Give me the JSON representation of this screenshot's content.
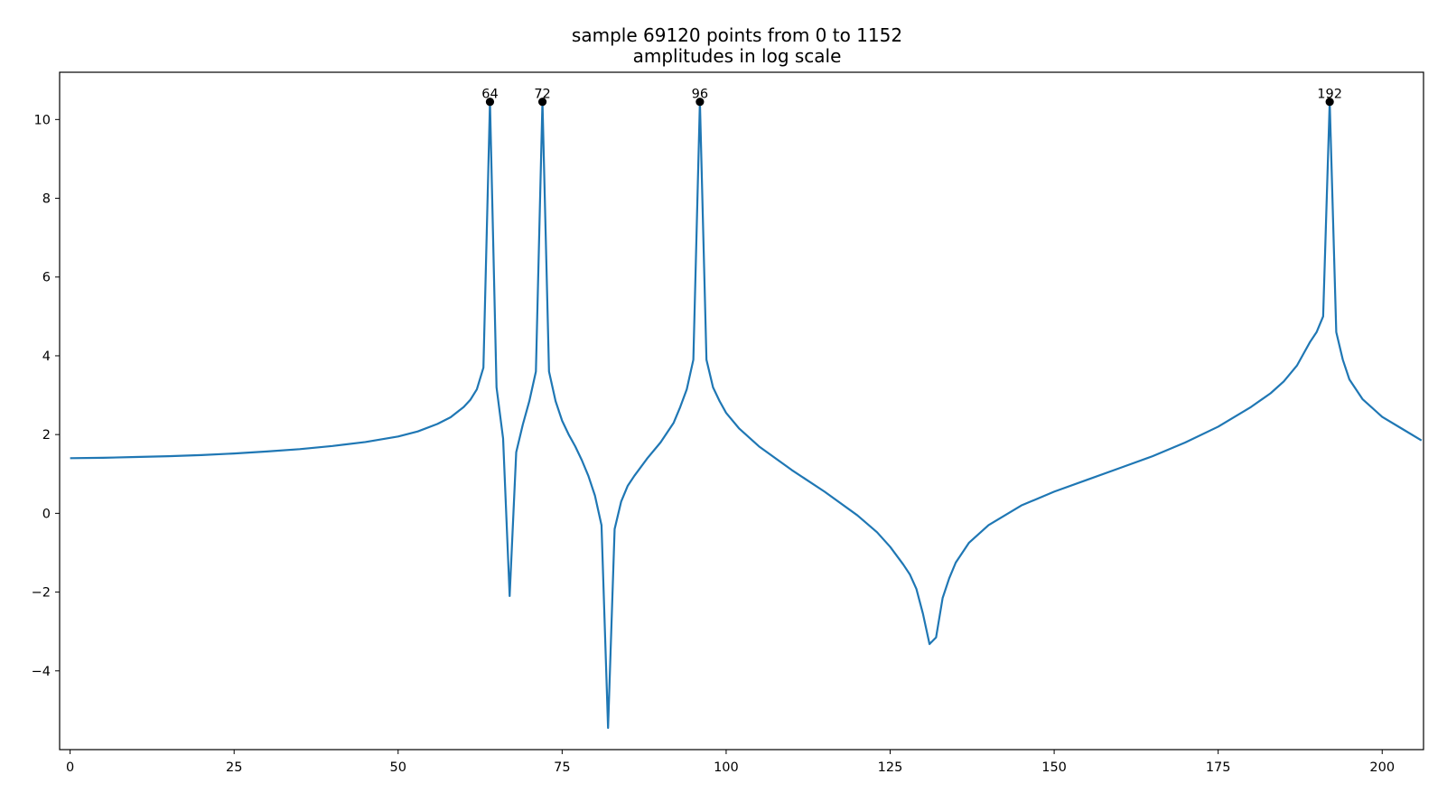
{
  "chart_data": {
    "type": "line",
    "title_lines": [
      "sample 69120 points from 0 to 1152",
      "amplitudes in log scale"
    ],
    "xlabel": "",
    "ylabel": "",
    "xlim": [
      -1.6,
      206.3
    ],
    "ylim": [
      -6.0,
      11.2
    ],
    "xticks": [
      0,
      25,
      50,
      75,
      100,
      125,
      150,
      175,
      200
    ],
    "yticks": [
      -4,
      -2,
      0,
      2,
      4,
      6,
      8,
      10
    ],
    "xtick_labels": [
      "0",
      "25",
      "50",
      "75",
      "100",
      "125",
      "150",
      "175",
      "200"
    ],
    "ytick_labels": [
      "−4",
      "−2",
      "0",
      "2",
      "4",
      "6",
      "8",
      "10"
    ],
    "grid": false,
    "line_color": "#1f77b4",
    "marker_color": "#000000",
    "series": [
      {
        "x": [
          0,
          5,
          10,
          15,
          20,
          25,
          30,
          35,
          40,
          45,
          50,
          53,
          56,
          58,
          60,
          61,
          62,
          63,
          64,
          65,
          66,
          67,
          68,
          69,
          70,
          71,
          72,
          73,
          74,
          75,
          76,
          77,
          78,
          79,
          80,
          81,
          82,
          83,
          84,
          85,
          86,
          88,
          90,
          92,
          93,
          94,
          95,
          96,
          97,
          98,
          99,
          100,
          102,
          105,
          110,
          115,
          120,
          123,
          125,
          127,
          128,
          129,
          130,
          131,
          132,
          133,
          134,
          135,
          137,
          140,
          145,
          150,
          155,
          160,
          165,
          170,
          175,
          180,
          183,
          185,
          187,
          188,
          189,
          190,
          191,
          192,
          193,
          194,
          195,
          197,
          200,
          203,
          206
        ],
        "y": [
          1.4,
          1.41,
          1.43,
          1.45,
          1.48,
          1.52,
          1.57,
          1.63,
          1.71,
          1.81,
          1.95,
          2.08,
          2.27,
          2.44,
          2.7,
          2.88,
          3.15,
          3.7,
          10.45,
          3.2,
          1.9,
          -2.1,
          1.55,
          2.25,
          2.85,
          3.6,
          10.45,
          3.6,
          2.85,
          2.35,
          2.0,
          1.7,
          1.35,
          0.95,
          0.45,
          -0.3,
          -5.45,
          -0.4,
          0.3,
          0.7,
          0.95,
          1.4,
          1.8,
          2.3,
          2.7,
          3.15,
          3.9,
          10.45,
          3.9,
          3.2,
          2.85,
          2.55,
          2.15,
          1.7,
          1.1,
          0.55,
          -0.05,
          -0.48,
          -0.85,
          -1.3,
          -1.55,
          -1.92,
          -2.55,
          -3.32,
          -3.15,
          -2.15,
          -1.65,
          -1.25,
          -0.75,
          -0.3,
          0.2,
          0.55,
          0.85,
          1.15,
          1.45,
          1.8,
          2.2,
          2.7,
          3.05,
          3.35,
          3.75,
          4.05,
          4.35,
          4.6,
          5.0,
          10.45,
          4.6,
          3.9,
          3.4,
          2.9,
          2.45,
          2.15,
          1.85
        ]
      }
    ],
    "peaks": [
      {
        "x": 64,
        "y": 10.45,
        "label": "64"
      },
      {
        "x": 72,
        "y": 10.45,
        "label": "72"
      },
      {
        "x": 96,
        "y": 10.45,
        "label": "96"
      },
      {
        "x": 192,
        "y": 10.45,
        "label": "192"
      }
    ]
  }
}
